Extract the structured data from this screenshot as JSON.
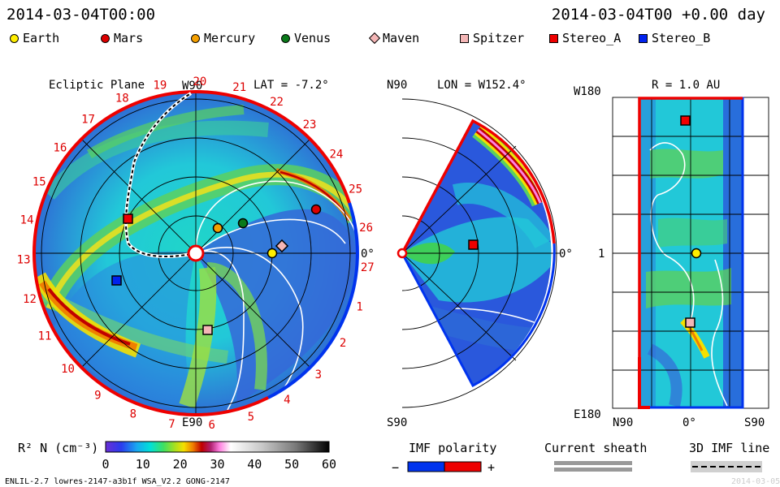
{
  "header": {
    "left_time": "2014-03-04T00:00",
    "right_time": "2014-03-04T00 +0.00 day"
  },
  "legend": [
    {
      "label": "Earth",
      "color": "#ffee00",
      "shape": "circle"
    },
    {
      "label": "Mars",
      "color": "#dd0000",
      "shape": "circle"
    },
    {
      "label": "Mercury",
      "color": "#f5a000",
      "shape": "circle"
    },
    {
      "label": "Venus",
      "color": "#0a7a1a",
      "shape": "circle"
    },
    {
      "label": "Maven",
      "color": "#f4b6b6",
      "shape": "diamond"
    },
    {
      "label": "Spitzer",
      "color": "#f4b6b6",
      "shape": "square"
    },
    {
      "label": "Stereo_A",
      "color": "#ee0000",
      "shape": "square"
    },
    {
      "label": "Stereo_B",
      "color": "#0022ee",
      "shape": "square"
    }
  ],
  "ecliptic": {
    "title": "Ecliptic Plane",
    "top": "W90",
    "bottom": "E90",
    "right": "0°",
    "lat": "LAT = -7.2°",
    "sectors": [
      "19",
      "20",
      "21",
      "22",
      "23",
      "24",
      "25",
      "26",
      "27",
      "1",
      "2",
      "3",
      "4",
      "5",
      "6",
      "7",
      "8",
      "9",
      "10",
      "11",
      "12",
      "13",
      "14",
      "15",
      "16",
      "17",
      "18"
    ]
  },
  "meridional": {
    "top": "N90",
    "bottom": "S90",
    "right": "0°",
    "lon": "LON = W152.4°"
  },
  "sphere": {
    "title": "R = 1.0 AU",
    "top_left": "W180",
    "mid_left": "1",
    "bottom_left": "E180",
    "x_left": "N90",
    "x_mid": "0°",
    "x_right": "S90"
  },
  "colorbar": {
    "label": "R² N (cm⁻³)",
    "ticks": [
      "0",
      "10",
      "20",
      "30",
      "40",
      "50",
      "60"
    ]
  },
  "imf_polarity": {
    "title": "IMF polarity",
    "minus": "−",
    "plus": "+"
  },
  "current_sheath": {
    "title": "Current sheath"
  },
  "imf_line": {
    "title": "3D IMF line"
  },
  "footer": {
    "left": "ENLIL-2.7 lowres-2147-a3b1f WSA_V2.2 GONG-2147",
    "right": "2014-03-05"
  },
  "colors": {
    "accent_red": "#ee0000",
    "accent_blue": "#0033ee"
  }
}
